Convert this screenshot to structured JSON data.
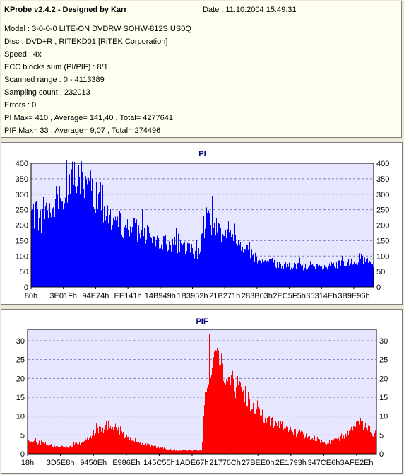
{
  "header": {
    "title": "KProbe v2.4.2 - Designed by Karr",
    "date": "Date : 11.10.2004 15:49:31"
  },
  "info_lines": [
    "Model : 3-0-0-0 LITE-ON DVDRW SOHW-812S  US0Q",
    "Disc : DVD+R , RITEKD01 [RiTEK Corporation]",
    "Speed : 4x",
    "ECC blocks sum (PI/PIF) : 8/1",
    "Scanned range : 0 - 4113389",
    "Sampling count : 232013",
    "Errors : 0",
    "PI Max= 410 , Average= 141,40 , Total= 4277641",
    "PIF Max= 33 , Average= 9,07 , Total= 274496"
  ],
  "colors": {
    "pi_fill": "#0000ff",
    "pif_fill": "#ff0000",
    "plot_bg": "#e6e6ff",
    "grid": "#7f7fbf",
    "panel_bg": "#ece9d8",
    "info_bg": "#ffffef"
  },
  "chart_data": [
    {
      "type": "area",
      "title": "PI",
      "xlabel": "",
      "ylabel": "",
      "ylim": [
        0,
        400
      ],
      "y_ticks": [
        0,
        50,
        100,
        150,
        200,
        250,
        300,
        350,
        400
      ],
      "x_tick_labels": [
        "80h",
        "3E01Fh",
        "94E74h",
        "EE141h",
        "14B949h",
        "1B3952h",
        "21B271h",
        "283B03h",
        "2EC5F5h",
        "35314Eh",
        "3B9E96h"
      ],
      "grid": true,
      "envelope_x_fraction": [
        0,
        0.01,
        0.03,
        0.06,
        0.09,
        0.11,
        0.13,
        0.16,
        0.18,
        0.2,
        0.22,
        0.24,
        0.27,
        0.3,
        0.33,
        0.36,
        0.39,
        0.42,
        0.45,
        0.47,
        0.49,
        0.5,
        0.51,
        0.52,
        0.53,
        0.55,
        0.57,
        0.6,
        0.63,
        0.66,
        0.69,
        0.72,
        0.75,
        0.78,
        0.81,
        0.84,
        0.87,
        0.9,
        0.92,
        0.94,
        0.96,
        0.98,
        1.0
      ],
      "envelope_y": [
        250,
        240,
        230,
        270,
        320,
        350,
        370,
        360,
        330,
        300,
        260,
        230,
        210,
        200,
        180,
        160,
        150,
        140,
        130,
        125,
        120,
        175,
        230,
        240,
        210,
        200,
        180,
        160,
        130,
        100,
        85,
        75,
        72,
        70,
        68,
        65,
        68,
        75,
        85,
        90,
        95,
        88,
        75
      ],
      "peak": 410
    },
    {
      "type": "area",
      "title": "PIF",
      "xlabel": "",
      "ylabel": "",
      "ylim": [
        0,
        33
      ],
      "y_ticks": [
        0,
        5,
        10,
        15,
        20,
        25,
        30
      ],
      "x_tick_labels": [
        "18h",
        "3D5E8h",
        "9450Eh",
        "E986Eh",
        "145C55h",
        "1ADE67h",
        "21776Ch",
        "27BEE0h",
        "2E1793h",
        "347CE6h",
        "3AFE2Eh"
      ],
      "grid": true,
      "envelope_x_fraction": [
        0,
        0.04,
        0.08,
        0.12,
        0.15,
        0.18,
        0.21,
        0.24,
        0.27,
        0.3,
        0.33,
        0.36,
        0.39,
        0.42,
        0.45,
        0.48,
        0.5,
        0.51,
        0.53,
        0.55,
        0.57,
        0.59,
        0.61,
        0.63,
        0.65,
        0.68,
        0.71,
        0.74,
        0.77,
        0.8,
        0.83,
        0.86,
        0.89,
        0.92,
        0.95,
        0.98,
        1.0
      ],
      "envelope_y": [
        4,
        3,
        2,
        2,
        3,
        5,
        7,
        8,
        6,
        4,
        3,
        2,
        1.5,
        1,
        1,
        1,
        1,
        20,
        26,
        24,
        22,
        20,
        18,
        16,
        12,
        10,
        9,
        7,
        6,
        5,
        4,
        3,
        4,
        6,
        8,
        7,
        5
      ],
      "peak": 33
    }
  ]
}
